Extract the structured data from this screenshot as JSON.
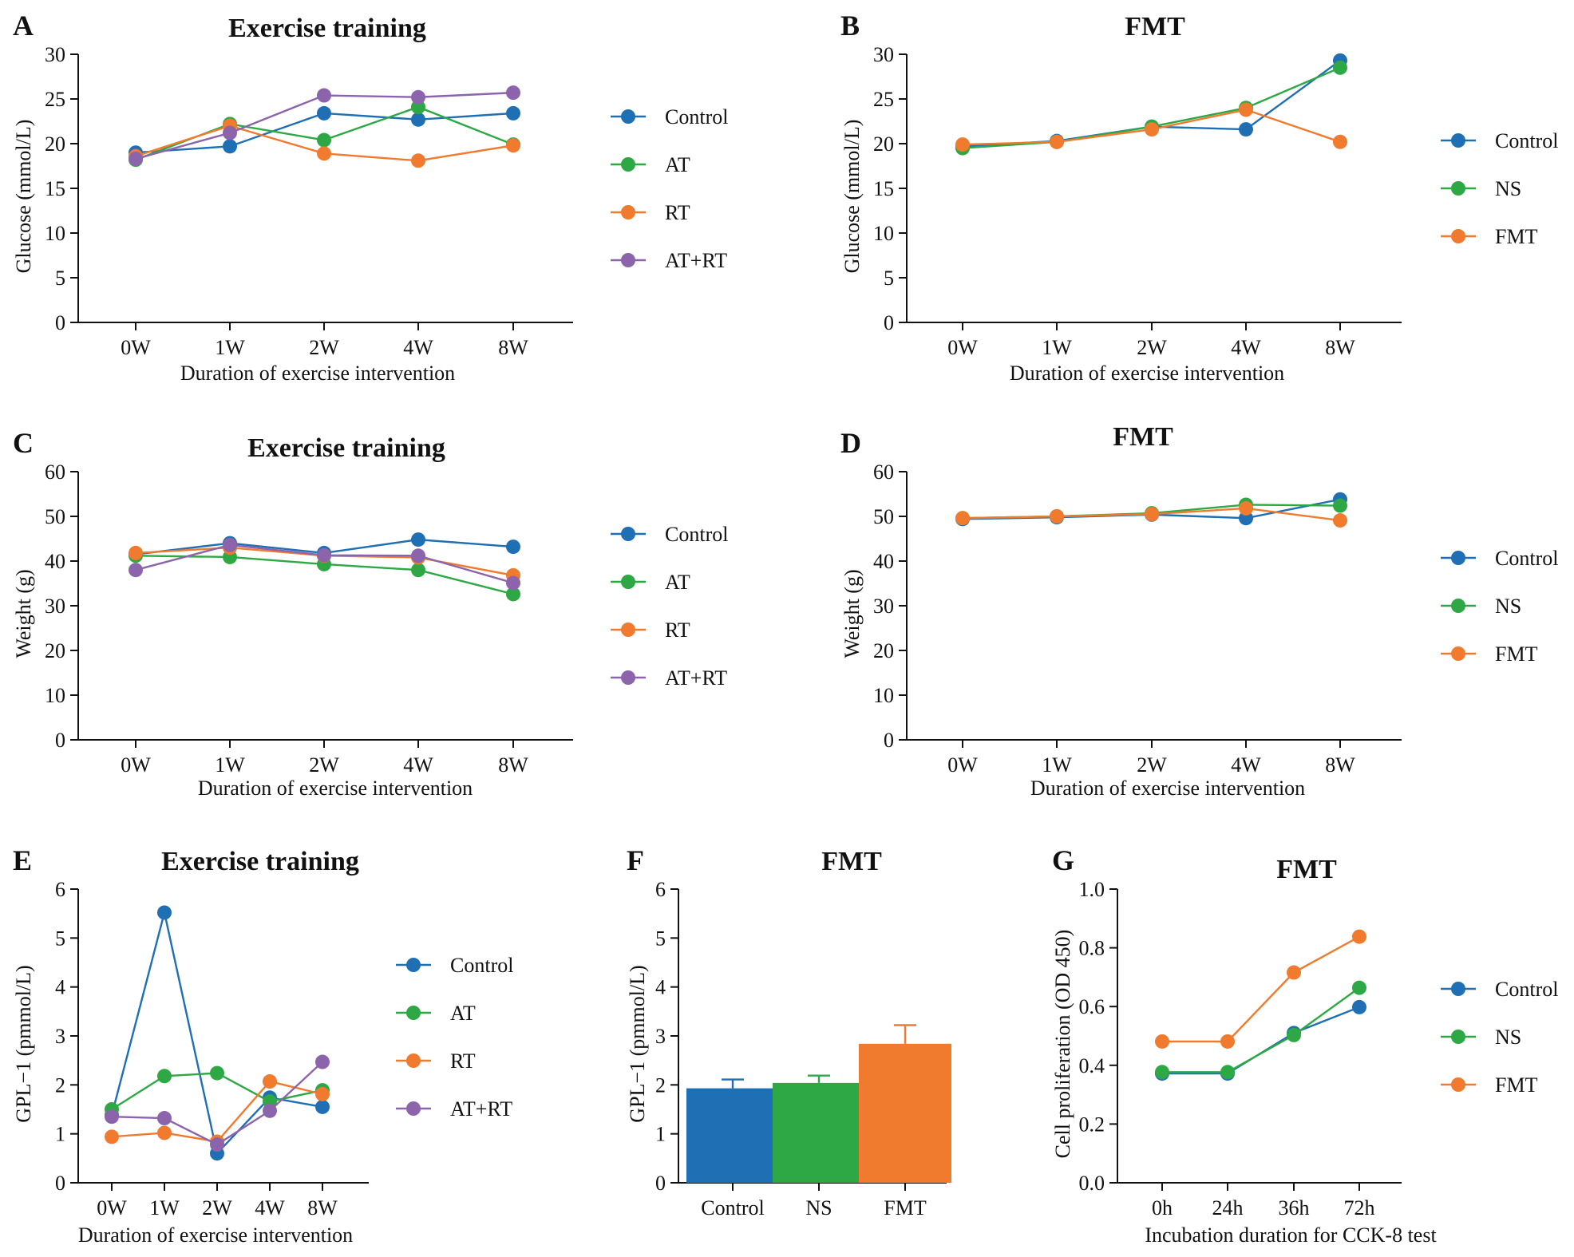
{
  "colors": {
    "Control": "#1f6fb4",
    "AT": "#2ea845",
    "NS": "#2ea845",
    "RT": "#f07a2e",
    "FMT": "#f07a2e",
    "AT+RT": "#8c64ab",
    "axis": "#111111"
  },
  "chart_data": [
    {
      "panel": "A",
      "type": "line",
      "title": "Exercise training",
      "xlabel": "Duration of exercise intervention",
      "ylabel": "Glucose (mmol/L)",
      "categories": [
        "0W",
        "1W",
        "2W",
        "4W",
        "8W"
      ],
      "ylim": [
        0,
        30
      ],
      "yticks": [
        0,
        5,
        10,
        15,
        20,
        25,
        30
      ],
      "series": [
        {
          "name": "Control",
          "values": [
            19.0,
            19.7,
            23.4,
            22.7,
            23.4
          ]
        },
        {
          "name": "AT",
          "values": [
            18.2,
            22.2,
            20.4,
            24.1,
            19.9
          ]
        },
        {
          "name": "RT",
          "values": [
            18.6,
            22.0,
            18.9,
            18.1,
            19.8
          ]
        },
        {
          "name": "AT+RT",
          "values": [
            18.3,
            21.2,
            25.4,
            25.2,
            25.7
          ]
        }
      ]
    },
    {
      "panel": "B",
      "type": "line",
      "title": "FMT",
      "xlabel": "Duration of exercise intervention",
      "ylabel": "Glucose (mmol/L)",
      "categories": [
        "0W",
        "1W",
        "2W",
        "4W",
        "8W"
      ],
      "ylim": [
        0,
        30
      ],
      "yticks": [
        0,
        5,
        10,
        15,
        20,
        25,
        30
      ],
      "series": [
        {
          "name": "Control",
          "values": [
            19.7,
            20.3,
            21.9,
            21.6,
            29.3
          ]
        },
        {
          "name": "NS",
          "values": [
            19.5,
            20.2,
            21.9,
            24.0,
            28.5
          ]
        },
        {
          "name": "FMT",
          "values": [
            19.9,
            20.2,
            21.6,
            23.8,
            20.2
          ]
        }
      ]
    },
    {
      "panel": "C",
      "type": "line",
      "title": "Exercise training",
      "xlabel": "Duration of exercise intervention",
      "ylabel": "Weight (g)",
      "categories": [
        "0W",
        "1W",
        "2W",
        "4W",
        "8W"
      ],
      "ylim": [
        0,
        60
      ],
      "yticks": [
        0,
        10,
        20,
        30,
        40,
        50,
        60
      ],
      "series": [
        {
          "name": "Control",
          "values": [
            41.5,
            44.0,
            41.8,
            44.8,
            43.2
          ]
        },
        {
          "name": "AT",
          "values": [
            41.2,
            40.9,
            39.3,
            38.0,
            32.6
          ]
        },
        {
          "name": "RT",
          "values": [
            41.8,
            43.0,
            41.2,
            40.8,
            36.8
          ]
        },
        {
          "name": "AT+RT",
          "values": [
            38.0,
            43.6,
            41.3,
            41.2,
            35.1
          ]
        }
      ]
    },
    {
      "panel": "D",
      "type": "line",
      "title": "FMT",
      "xlabel": "Duration of exercise intervention",
      "ylabel": "Weight (g)",
      "categories": [
        "0W",
        "1W",
        "2W",
        "4W",
        "8W"
      ],
      "ylim": [
        0,
        60
      ],
      "yticks": [
        0,
        10,
        20,
        30,
        40,
        50,
        60
      ],
      "series": [
        {
          "name": "Control",
          "values": [
            49.4,
            49.8,
            50.4,
            49.6,
            53.8
          ]
        },
        {
          "name": "NS",
          "values": [
            49.6,
            50.0,
            50.7,
            52.6,
            52.4
          ]
        },
        {
          "name": "FMT",
          "values": [
            49.6,
            50.0,
            50.5,
            51.8,
            49.1
          ]
        }
      ]
    },
    {
      "panel": "E",
      "type": "line",
      "title": "Exercise training",
      "xlabel": "Duration of exercise intervention",
      "ylabel": "GPL−1 (pmmol/L)",
      "categories": [
        "0W",
        "1W",
        "2W",
        "4W",
        "8W"
      ],
      "ylim": [
        0,
        6
      ],
      "yticks": [
        0,
        1,
        2,
        3,
        4,
        5,
        6
      ],
      "series": [
        {
          "name": "Control",
          "values": [
            1.38,
            5.52,
            0.6,
            1.74,
            1.55
          ]
        },
        {
          "name": "AT",
          "values": [
            1.5,
            2.18,
            2.24,
            1.66,
            1.89
          ]
        },
        {
          "name": "RT",
          "values": [
            0.94,
            1.02,
            0.84,
            2.07,
            1.81
          ]
        },
        {
          "name": "AT+RT",
          "values": [
            1.35,
            1.32,
            0.78,
            1.47,
            2.47
          ]
        }
      ]
    },
    {
      "panel": "F",
      "type": "bar",
      "title": "FMT",
      "xlabel": "",
      "ylabel": "GPL−1 (pmmol/L)",
      "categories": [
        "Control",
        "NS",
        "FMT"
      ],
      "ylim": [
        0,
        6
      ],
      "yticks": [
        0,
        1,
        2,
        3,
        4,
        5,
        6
      ],
      "values": [
        1.93,
        2.04,
        2.84
      ],
      "errors": [
        0.18,
        0.15,
        0.38
      ]
    },
    {
      "panel": "G",
      "type": "line",
      "title": "FMT",
      "xlabel": "Incubation duration for CCK-8 test",
      "ylabel": "Cell proliferation (OD 450)",
      "categories": [
        "0h",
        "24h",
        "36h",
        "72h"
      ],
      "ylim": [
        0,
        1.0
      ],
      "yticks": [
        "0.0",
        "0.2",
        "0.4",
        "0.6",
        "0.8",
        "1.0"
      ],
      "series": [
        {
          "name": "Control",
          "values": [
            0.372,
            0.372,
            0.51,
            0.598
          ]
        },
        {
          "name": "NS",
          "values": [
            0.377,
            0.377,
            0.503,
            0.664
          ]
        },
        {
          "name": "FMT",
          "values": [
            0.481,
            0.481,
            0.716,
            0.838
          ]
        }
      ]
    }
  ]
}
